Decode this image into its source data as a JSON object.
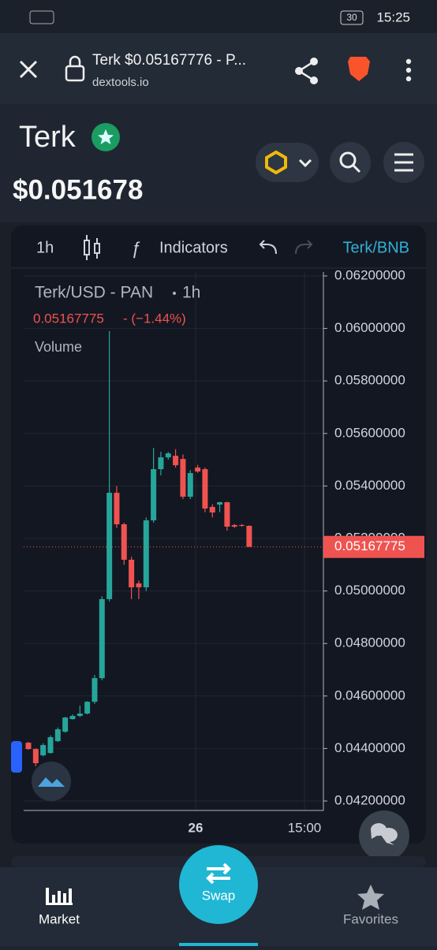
{
  "status_bar": {
    "battery": "30",
    "time": "15:25"
  },
  "browser": {
    "page_title": "Terk $0.05167776 - P...",
    "domain": "dextools.io"
  },
  "header": {
    "token": "Terk",
    "price": "$0.051678"
  },
  "toolbar": {
    "interval": "1h",
    "indicators": "Indicators",
    "pair": "Terk/BNB"
  },
  "legend": {
    "symbol": "Terk/USD - PAN",
    "interval": "1h",
    "last": "0.05167775",
    "change": "- (−1.44%)",
    "volume": "Volume"
  },
  "chart_data": {
    "type": "candlestick",
    "ylim": [
      0.042,
      0.062
    ],
    "yticks": [
      {
        "value": 0.062,
        "label": "0.06200000"
      },
      {
        "value": 0.06,
        "label": "0.06000000"
      },
      {
        "value": 0.058,
        "label": "0.05800000"
      },
      {
        "value": 0.056,
        "label": "0.05600000"
      },
      {
        "value": 0.054,
        "label": "0.05400000"
      },
      {
        "value": 0.052,
        "label": "0.05200000"
      },
      {
        "value": 0.05,
        "label": "0.05000000"
      },
      {
        "value": 0.048,
        "label": "0.04800000"
      },
      {
        "value": 0.046,
        "label": "0.04600000"
      },
      {
        "value": 0.044,
        "label": "0.04400000"
      },
      {
        "value": 0.042,
        "label": "0.04200000"
      }
    ],
    "x_labels": [
      "26",
      "15:00"
    ],
    "last_price": 0.05167775,
    "up_color": "#26a69a",
    "down_color": "#ef5350",
    "candles": [
      {
        "open": 0.04422,
        "high": 0.04425,
        "low": 0.04395,
        "close": 0.04398
      },
      {
        "open": 0.04398,
        "high": 0.044,
        "low": 0.04332,
        "close": 0.04344
      },
      {
        "open": 0.04374,
        "high": 0.0442,
        "low": 0.0437,
        "close": 0.04413
      },
      {
        "open": 0.04383,
        "high": 0.0445,
        "low": 0.0438,
        "close": 0.04443
      },
      {
        "open": 0.04428,
        "high": 0.0448,
        "low": 0.04425,
        "close": 0.04473
      },
      {
        "open": 0.04464,
        "high": 0.0452,
        "low": 0.0446,
        "close": 0.04518
      },
      {
        "open": 0.04512,
        "high": 0.0453,
        "low": 0.0451,
        "close": 0.04524
      },
      {
        "open": 0.04524,
        "high": 0.04563,
        "low": 0.0452,
        "close": 0.04533
      },
      {
        "open": 0.04533,
        "high": 0.0458,
        "low": 0.0453,
        "close": 0.04578
      },
      {
        "open": 0.04578,
        "high": 0.0468,
        "low": 0.0457,
        "close": 0.04668
      },
      {
        "open": 0.04668,
        "high": 0.0498,
        "low": 0.0466,
        "close": 0.04969
      },
      {
        "open": 0.04969,
        "high": 0.0599,
        "low": 0.0496,
        "close": 0.05374
      },
      {
        "open": 0.05374,
        "high": 0.054,
        "low": 0.0524,
        "close": 0.05254
      },
      {
        "open": 0.05254,
        "high": 0.0526,
        "low": 0.051,
        "close": 0.05119
      },
      {
        "open": 0.05119,
        "high": 0.0513,
        "low": 0.04969,
        "close": 0.05014
      },
      {
        "open": 0.05029,
        "high": 0.0504,
        "low": 0.04969,
        "close": 0.05014
      },
      {
        "open": 0.05014,
        "high": 0.0528,
        "low": 0.05,
        "close": 0.05269
      },
      {
        "open": 0.05269,
        "high": 0.05545,
        "low": 0.0526,
        "close": 0.05464
      },
      {
        "open": 0.05464,
        "high": 0.0553,
        "low": 0.0544,
        "close": 0.05509
      },
      {
        "open": 0.05509,
        "high": 0.0553,
        "low": 0.055,
        "close": 0.05524
      },
      {
        "open": 0.05515,
        "high": 0.0554,
        "low": 0.0547,
        "close": 0.05479
      },
      {
        "open": 0.05503,
        "high": 0.0552,
        "low": 0.0535,
        "close": 0.05359
      },
      {
        "open": 0.05359,
        "high": 0.0546,
        "low": 0.0535,
        "close": 0.05449
      },
      {
        "open": 0.0547,
        "high": 0.0548,
        "low": 0.0545,
        "close": 0.05455
      },
      {
        "open": 0.05464,
        "high": 0.0547,
        "low": 0.053,
        "close": 0.05314
      },
      {
        "open": 0.0532,
        "high": 0.0533,
        "low": 0.0528,
        "close": 0.05299
      },
      {
        "open": 0.05329,
        "high": 0.0534,
        "low": 0.053,
        "close": 0.05338
      },
      {
        "open": 0.05338,
        "high": 0.0534,
        "low": 0.0523,
        "close": 0.05245
      },
      {
        "open": 0.05251,
        "high": 0.05255,
        "low": 0.0524,
        "close": 0.05245
      },
      {
        "open": 0.05251,
        "high": 0.05255,
        "low": 0.05245,
        "close": 0.05248
      },
      {
        "open": 0.05248,
        "high": 0.0525,
        "low": 0.0517,
        "close": 0.05167775
      }
    ]
  },
  "bottom_nav": {
    "market": "Market",
    "swap": "Swap",
    "favorites": "Favorites"
  }
}
